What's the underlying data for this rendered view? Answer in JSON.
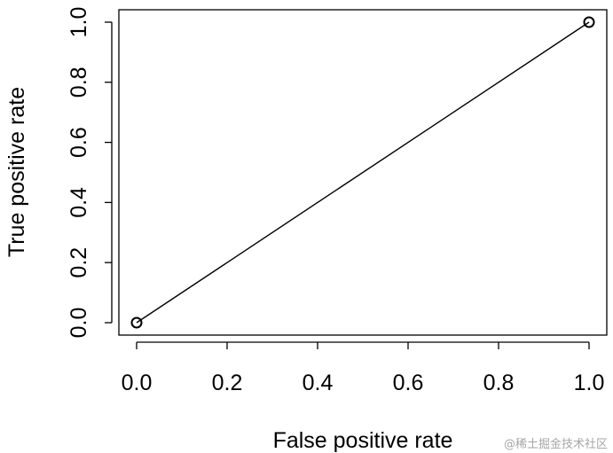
{
  "chart_data": {
    "type": "line",
    "x": [
      0.0,
      1.0
    ],
    "series": [
      {
        "values": [
          0.0,
          1.0
        ]
      }
    ],
    "xlabel": "False positive rate",
    "ylabel": "True positive rate",
    "xlim": [
      0.0,
      1.0
    ],
    "ylim": [
      0.0,
      1.0
    ],
    "xticks": [
      0.0,
      0.2,
      0.4,
      0.6,
      0.8,
      1.0
    ],
    "yticks": [
      0.0,
      0.2,
      0.4,
      0.6,
      0.8,
      1.0
    ],
    "xtick_labels": [
      "0.0",
      "0.2",
      "0.4",
      "0.6",
      "0.8",
      "1.0"
    ],
    "ytick_labels": [
      "0.0",
      "0.2",
      "0.4",
      "0.6",
      "0.8",
      "1.0"
    ],
    "grid": false,
    "markers": "open-circle",
    "line_color": "#000000"
  },
  "watermark": "@稀土掘金技术社区"
}
